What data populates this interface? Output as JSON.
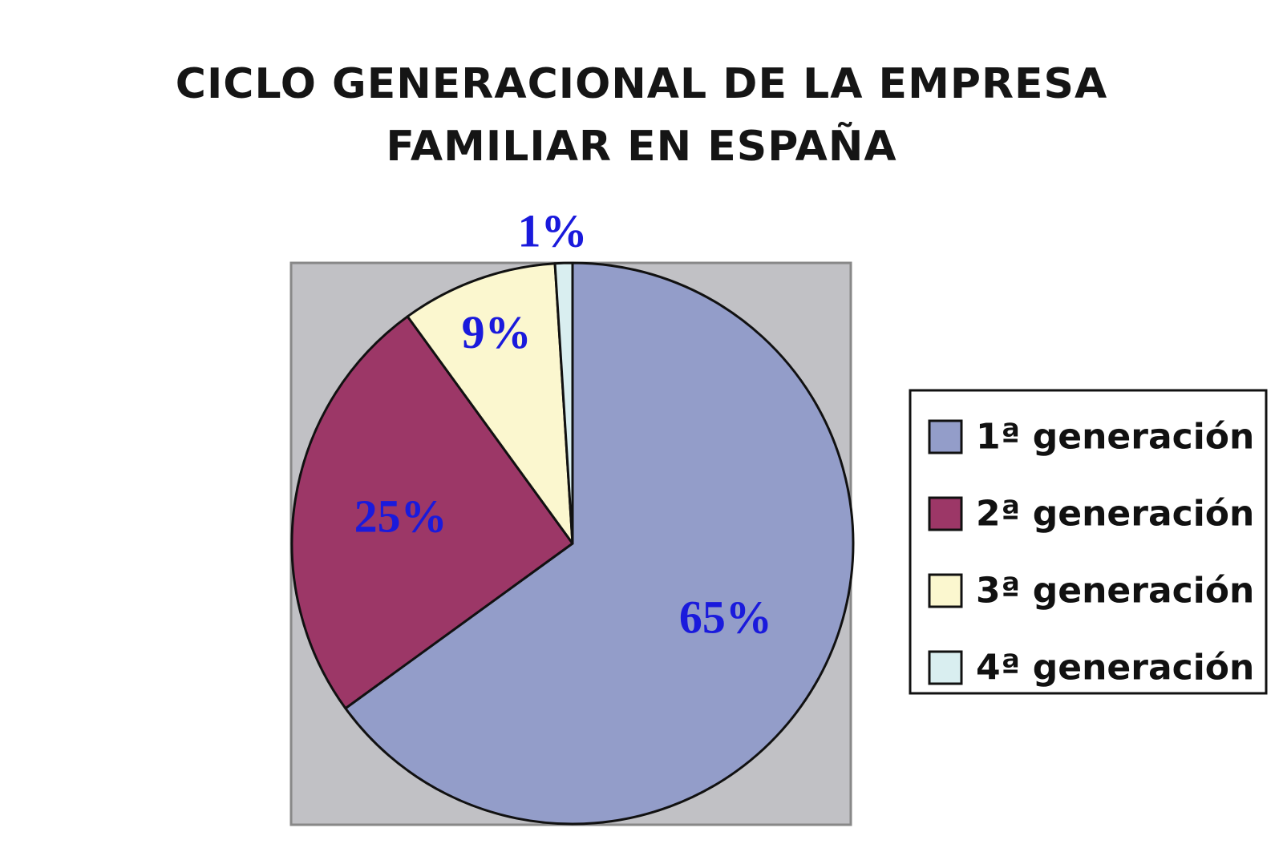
{
  "chart_data": {
    "type": "pie",
    "title": "CICLO GENERACIONAL DE LA EMPRESA FAMILIAR EN ESPAÑA",
    "title_lines": [
      "CICLO GENERACIONAL DE LA EMPRESA",
      "FAMILIAR EN ESPAÑA"
    ],
    "slices": [
      {
        "name": "1ª generación",
        "value": 65,
        "label": "65%",
        "color": "#939dc9"
      },
      {
        "name": "2ª generación",
        "value": 25,
        "label": "25%",
        "color": "#9c3767"
      },
      {
        "name": "3ª generación",
        "value": 9,
        "label": "9%",
        "color": "#fbf7cf"
      },
      {
        "name": "4ª generación",
        "value": 1,
        "label": "1%",
        "color": "#d9eef0"
      }
    ],
    "start_angle": "12 o'clock",
    "direction": "clockwise",
    "plot_background": "#c1c1c5",
    "label_color": "#1a1adc",
    "legend_position": "right"
  }
}
